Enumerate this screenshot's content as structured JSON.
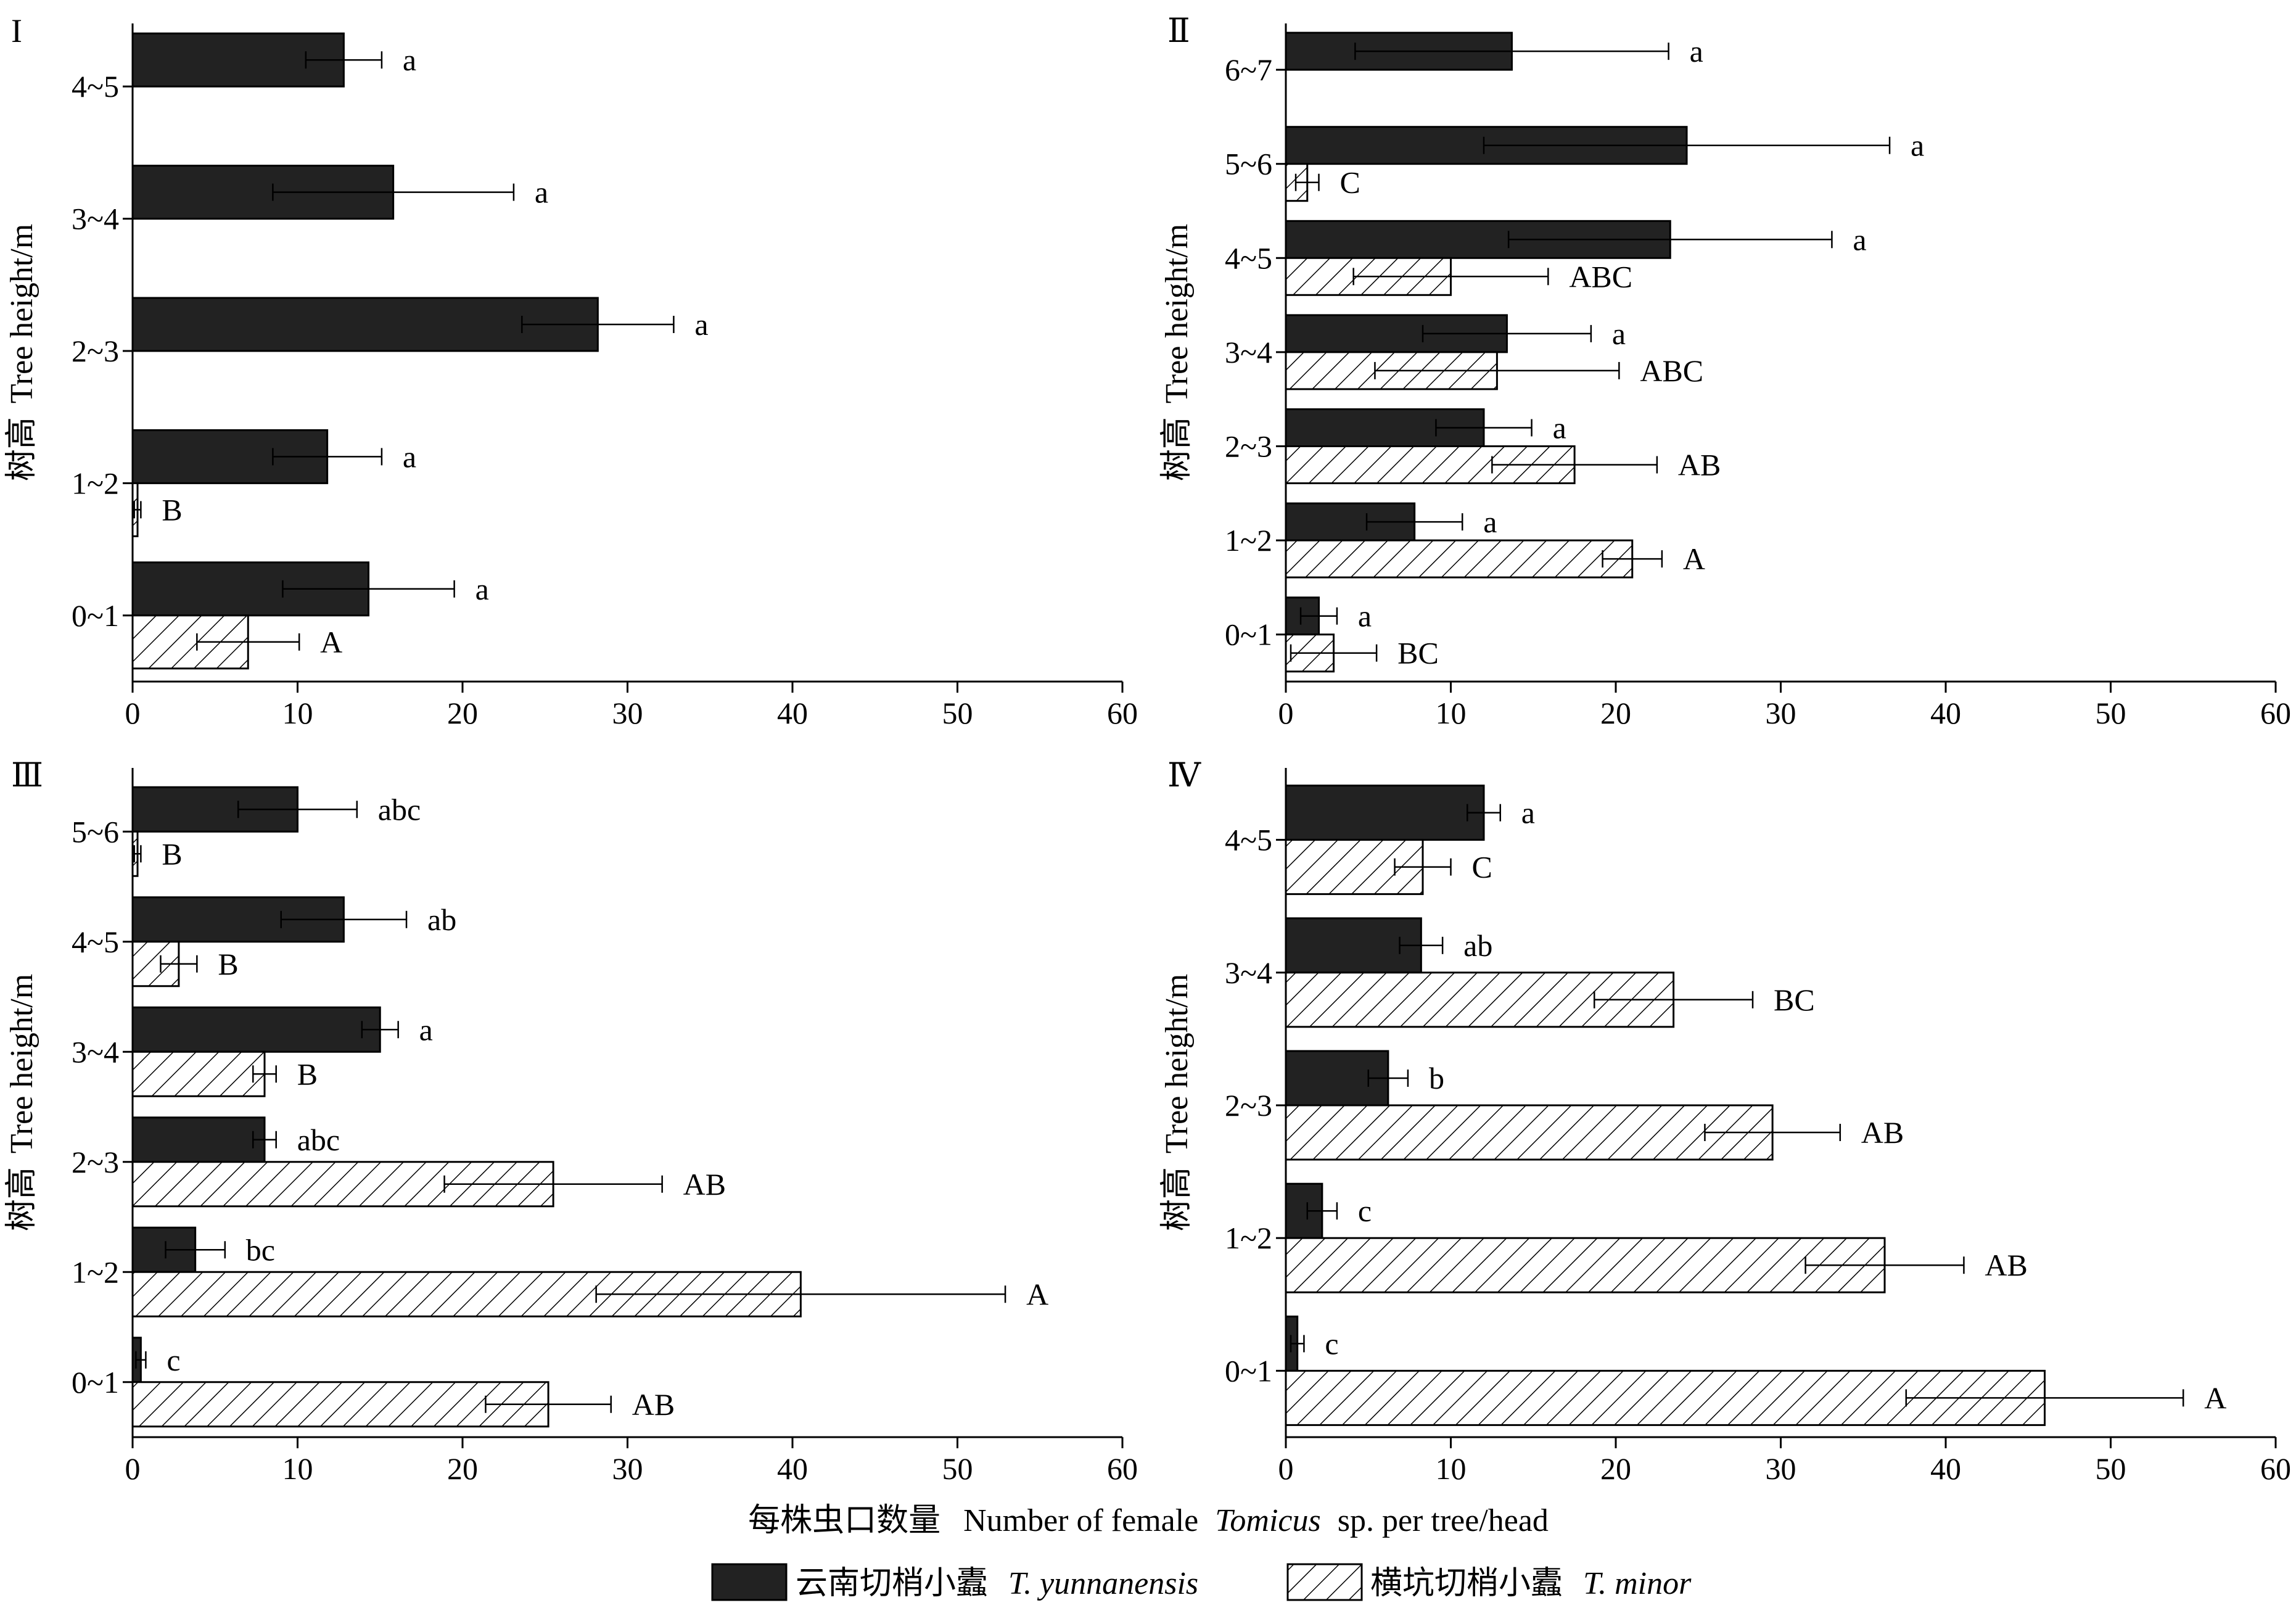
{
  "figure": {
    "xlabel_cn": "每株虫口数量",
    "xlabel_en_pre": "Number of female",
    "xlabel_en_italic": "Tomicus",
    "xlabel_en_post": "sp. per tree/head",
    "ylabel_cn": "树高",
    "ylabel_en": "Tree height/m",
    "legend": [
      {
        "label_cn": "云南切梢小蠹",
        "label_en": "T. yunnanensis",
        "fill": "#222222",
        "pattern": "solid"
      },
      {
        "label_cn": "横坑切梢小蠹",
        "label_en": "T. minor",
        "fill": "#ffffff",
        "pattern": "hatch"
      }
    ],
    "colors": {
      "yunnanensis": "#222222",
      "minor_hatch": "#000000",
      "axis": "#000000"
    }
  },
  "chart_data": [
    {
      "type": "bar",
      "panel": "I",
      "orientation": "horizontal",
      "xlim": [
        0,
        60
      ],
      "xticks": [
        0,
        10,
        20,
        30,
        40,
        50,
        60
      ],
      "categories": [
        "0~1",
        "1~2",
        "2~3",
        "3~4",
        "4~5"
      ],
      "series": [
        {
          "name": "云南切梢小蠹 T. yunnanensis",
          "values": [
            14.3,
            11.8,
            28.2,
            15.8,
            12.8
          ],
          "errors": [
            5.2,
            3.3,
            4.6,
            7.3,
            2.3
          ],
          "labels": [
            "a",
            "a",
            "a",
            "a",
            "a"
          ]
        },
        {
          "name": "横坑切梢小蠹 T. minor",
          "values": [
            7.0,
            0.3,
            null,
            null,
            null
          ],
          "errors": [
            3.1,
            0.2,
            null,
            null,
            null
          ],
          "labels": [
            "A",
            "B",
            "",
            "",
            ""
          ]
        }
      ]
    },
    {
      "type": "bar",
      "panel": "Ⅱ",
      "orientation": "horizontal",
      "xlim": [
        0,
        60
      ],
      "xticks": [
        0,
        10,
        20,
        30,
        40,
        50,
        60
      ],
      "categories": [
        "0~1",
        "1~2",
        "2~3",
        "3~4",
        "4~5",
        "5~6",
        "6~7"
      ],
      "series": [
        {
          "name": "云南切梢小蠹 T. yunnanensis",
          "values": [
            2.0,
            7.8,
            12.0,
            13.4,
            23.3,
            24.3,
            13.7
          ],
          "errors": [
            1.1,
            2.9,
            2.9,
            5.1,
            9.8,
            12.3,
            9.5
          ],
          "labels": [
            "a",
            "a",
            "a",
            "a",
            "a",
            "a",
            "a"
          ]
        },
        {
          "name": "横坑切梢小蠹 T. minor",
          "values": [
            2.9,
            21.0,
            17.5,
            12.8,
            10.0,
            1.3,
            null
          ],
          "errors": [
            2.6,
            1.8,
            5.0,
            7.4,
            5.9,
            0.7,
            null
          ],
          "labels": [
            "BC",
            "A",
            "AB",
            "ABC",
            "ABC",
            "C",
            ""
          ]
        }
      ]
    },
    {
      "type": "bar",
      "panel": "Ⅲ",
      "orientation": "horizontal",
      "xlim": [
        0,
        60
      ],
      "xticks": [
        0,
        10,
        20,
        30,
        40,
        50,
        60
      ],
      "categories": [
        "0~1",
        "1~2",
        "2~3",
        "3~4",
        "4~5",
        "5~6"
      ],
      "series": [
        {
          "name": "云南切梢小蠹 T. yunnanensis",
          "values": [
            0.5,
            3.8,
            8.0,
            15.0,
            12.8,
            10.0
          ],
          "errors": [
            0.3,
            1.8,
            0.7,
            1.1,
            3.8,
            3.6
          ],
          "labels": [
            "c",
            "bc",
            "abc",
            "a",
            "ab",
            "abc"
          ]
        },
        {
          "name": "横坑切梢小蠹 T. minor",
          "values": [
            25.2,
            40.5,
            25.5,
            8.0,
            2.8,
            0.3
          ],
          "errors": [
            3.8,
            12.4,
            6.6,
            0.7,
            1.1,
            0.2
          ],
          "labels": [
            "AB",
            "A",
            "AB",
            "B",
            "B",
            "B"
          ]
        }
      ]
    },
    {
      "type": "bar",
      "panel": "Ⅳ",
      "orientation": "horizontal",
      "xlim": [
        0,
        60
      ],
      "xticks": [
        0,
        10,
        20,
        30,
        40,
        50,
        60
      ],
      "categories": [
        "0~1",
        "1~2",
        "2~3",
        "3~4",
        "4~5"
      ],
      "series": [
        {
          "name": "云南切梢小蠹 T. yunnanensis",
          "values": [
            0.7,
            2.2,
            6.2,
            8.2,
            12.0
          ],
          "errors": [
            0.4,
            0.9,
            1.2,
            1.3,
            1.0
          ],
          "labels": [
            "c",
            "c",
            "b",
            "ab",
            "a"
          ]
        },
        {
          "name": "横坑切梢小蠹 T. minor",
          "values": [
            46.0,
            36.3,
            29.5,
            23.5,
            8.3
          ],
          "errors": [
            8.4,
            4.8,
            4.1,
            4.8,
            1.7
          ],
          "labels": [
            "A",
            "AB",
            "AB",
            "BC",
            "C"
          ]
        }
      ]
    }
  ]
}
